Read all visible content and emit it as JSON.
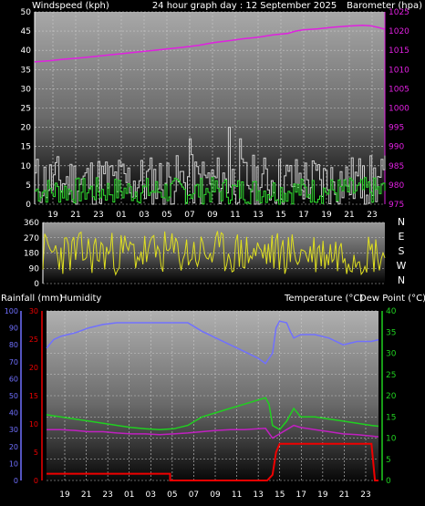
{
  "chart_data": [
    {
      "type": "line",
      "title": "24 hour graph day : 12 September 2025",
      "ylabel": "Windspeed (kph)",
      "y2label": "Barometer (hpa)",
      "ylim": [
        0,
        50
      ],
      "y2lim": [
        975,
        1025
      ],
      "yticks": [
        "0",
        "5",
        "10",
        "15",
        "20",
        "25",
        "30",
        "35",
        "40",
        "45",
        "50"
      ],
      "y2ticks": [
        "975",
        "980",
        "985",
        "990",
        "995",
        "1000",
        "1005",
        "1010",
        "1015",
        "1020",
        "1025"
      ],
      "xticks": [
        "19",
        "21",
        "23",
        "01",
        "03",
        "05",
        "07",
        "09",
        "11",
        "13",
        "15",
        "17",
        "19",
        "21",
        "23"
      ],
      "series": [
        {
          "key": "barometer",
          "color": "#e020e0",
          "axis": "right",
          "points": [
            [
              0,
              1012
            ],
            [
              8,
              1012.3
            ],
            [
              16,
              1012.7
            ],
            [
              24,
              1013
            ],
            [
              32,
              1013.4
            ],
            [
              40,
              1013.8
            ],
            [
              48,
              1014.2
            ],
            [
              56,
              1014.6
            ],
            [
              64,
              1015
            ],
            [
              72,
              1015.4
            ],
            [
              80,
              1015.8
            ],
            [
              88,
              1016.3
            ],
            [
              96,
              1017
            ],
            [
              104,
              1017.5
            ],
            [
              112,
              1018
            ],
            [
              120,
              1018.4
            ],
            [
              128,
              1019
            ],
            [
              136,
              1019.4
            ],
            [
              140,
              1020
            ],
            [
              144,
              1020.3
            ],
            [
              152,
              1020.6
            ],
            [
              160,
              1021
            ],
            [
              168,
              1021.3
            ],
            [
              176,
              1021.5
            ],
            [
              180,
              1021.4
            ],
            [
              184,
              1021
            ],
            [
              188,
              1020.5
            ]
          ]
        },
        {
          "key": "gust",
          "color": "#d0d0d0",
          "axis": "left",
          "seed": 11,
          "base": 6,
          "amp": 7,
          "spikes": [
            [
              83,
              17
            ],
            [
              104,
              20
            ],
            [
              110,
              17
            ],
            [
              176,
              10
            ]
          ]
        },
        {
          "key": "windspeed",
          "color": "#30e030",
          "axis": "left",
          "seed": 7,
          "base": 3.5,
          "amp": 3.5,
          "spikes": []
        }
      ]
    },
    {
      "type": "line",
      "ylim": [
        0,
        360
      ],
      "yticks": [
        "0",
        "90",
        "180",
        "270",
        "360"
      ],
      "compass": [
        "N",
        "W",
        "S",
        "E",
        "N"
      ],
      "series": [
        {
          "key": "wind-direction",
          "color": "#e0e020",
          "seed": 23,
          "base": 180,
          "amp": 130
        }
      ]
    },
    {
      "type": "line",
      "labels": {
        "rainfall": "Rainfall (mm)",
        "humidity": "Humidity",
        "temperature": "Temperature (°C)",
        "dewpoint": "Dew Point (°C)"
      },
      "humidity_ticks": [
        "0",
        "10",
        "20",
        "30",
        "40",
        "50",
        "60",
        "70",
        "80",
        "90",
        "100"
      ],
      "rain_ticks": [
        "0",
        "5",
        "10",
        "15",
        "20",
        "25",
        "30"
      ],
      "temp_ticks": [
        "0",
        "5",
        "10",
        "15",
        "20",
        "25",
        "30",
        "35",
        "40"
      ],
      "xticks": [
        "19",
        "21",
        "23",
        "01",
        "03",
        "05",
        "07",
        "09",
        "11",
        "13",
        "15",
        "17",
        "19",
        "21",
        "23"
      ],
      "series": [
        {
          "key": "humidity",
          "color": "#7070ff",
          "axis": "humidity",
          "points": [
            [
              0,
              78
            ],
            [
              4,
              83
            ],
            [
              8,
              85
            ],
            [
              12,
              86
            ],
            [
              16,
              87
            ],
            [
              24,
              90
            ],
            [
              32,
              92
            ],
            [
              40,
              93
            ],
            [
              56,
              93
            ],
            [
              72,
              93
            ],
            [
              80,
              93
            ],
            [
              88,
              88
            ],
            [
              96,
              84
            ],
            [
              104,
              80
            ],
            [
              112,
              76
            ],
            [
              120,
              72
            ],
            [
              124,
              69
            ],
            [
              128,
              75
            ],
            [
              130,
              90
            ],
            [
              132,
              94
            ],
            [
              136,
              93
            ],
            [
              138,
              88
            ],
            [
              140,
              84
            ],
            [
              144,
              86
            ],
            [
              152,
              86
            ],
            [
              160,
              84
            ],
            [
              168,
              80
            ],
            [
              176,
              82
            ],
            [
              184,
              82
            ],
            [
              188,
              83
            ]
          ]
        },
        {
          "key": "temperature",
          "color": "#20d020",
          "axis": "temp",
          "points": [
            [
              0,
              15.5
            ],
            [
              8,
              15
            ],
            [
              16,
              14.5
            ],
            [
              24,
              14
            ],
            [
              32,
              13.5
            ],
            [
              40,
              13
            ],
            [
              48,
              12.5
            ],
            [
              56,
              12.2
            ],
            [
              64,
              12
            ],
            [
              72,
              12.2
            ],
            [
              80,
              13
            ],
            [
              88,
              15
            ],
            [
              96,
              16
            ],
            [
              104,
              17
            ],
            [
              112,
              18
            ],
            [
              120,
              19
            ],
            [
              124,
              19.5
            ],
            [
              126,
              18
            ],
            [
              128,
              13
            ],
            [
              132,
              12
            ],
            [
              136,
              14
            ],
            [
              140,
              17
            ],
            [
              144,
              15
            ],
            [
              152,
              15
            ],
            [
              160,
              14.5
            ],
            [
              168,
              14
            ],
            [
              176,
              13.5
            ],
            [
              184,
              13
            ],
            [
              188,
              12.8
            ]
          ]
        },
        {
          "key": "dewpoint",
          "color": "#c020c0",
          "axis": "temp",
          "points": [
            [
              0,
              12
            ],
            [
              8,
              12
            ],
            [
              16,
              11.8
            ],
            [
              24,
              11.5
            ],
            [
              32,
              11.5
            ],
            [
              40,
              11.2
            ],
            [
              48,
              11
            ],
            [
              56,
              11
            ],
            [
              64,
              10.8
            ],
            [
              72,
              11
            ],
            [
              80,
              11.2
            ],
            [
              88,
              11.5
            ],
            [
              96,
              11.8
            ],
            [
              104,
              12
            ],
            [
              112,
              12
            ],
            [
              120,
              12.2
            ],
            [
              124,
              12.3
            ],
            [
              128,
              10
            ],
            [
              132,
              11
            ],
            [
              136,
              12
            ],
            [
              140,
              13
            ],
            [
              144,
              12.5
            ],
            [
              152,
              12
            ],
            [
              160,
              11.5
            ],
            [
              168,
              11
            ],
            [
              176,
              10.8
            ],
            [
              184,
              10.5
            ],
            [
              188,
              10.3
            ]
          ]
        },
        {
          "key": "rainfall",
          "color": "#f00000",
          "axis": "rain",
          "points": [
            [
              0,
              1.2
            ],
            [
              70,
              1.2
            ],
            [
              70,
              0
            ],
            [
              125,
              0
            ],
            [
              128,
              1
            ],
            [
              130,
              5
            ],
            [
              132,
              6.5
            ],
            [
              184,
              6.5
            ],
            [
              186,
              0
            ],
            [
              188,
              0
            ]
          ]
        }
      ]
    }
  ]
}
